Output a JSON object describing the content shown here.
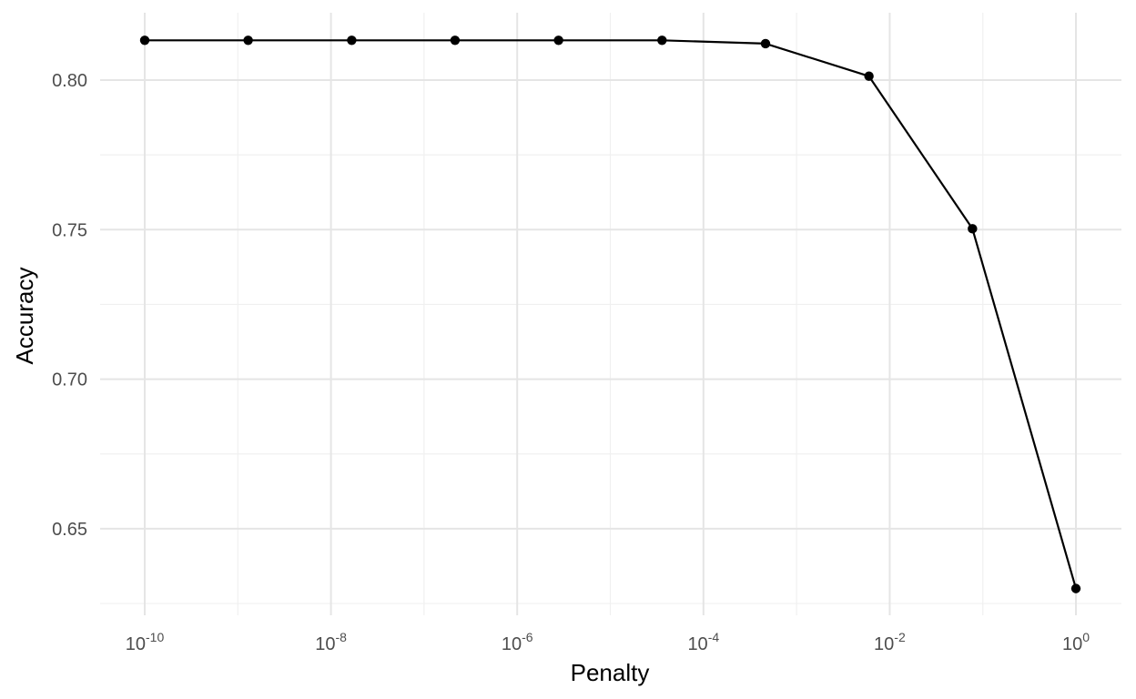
{
  "chart_data": {
    "type": "line",
    "xlabel": "Penalty",
    "ylabel": "Accuracy",
    "x_scale": "log10",
    "xlim": [
      1e-10,
      1
    ],
    "ylim": [
      0.625,
      0.815
    ],
    "grid": true,
    "x_ticks": [
      {
        "base": "10",
        "exp": "-10",
        "value": 1e-10
      },
      {
        "base": "10",
        "exp": "-8",
        "value": 1e-08
      },
      {
        "base": "10",
        "exp": "-6",
        "value": 1e-06
      },
      {
        "base": "10",
        "exp": "-4",
        "value": 0.0001
      },
      {
        "base": "10",
        "exp": "-2",
        "value": 0.01
      },
      {
        "base": "10",
        "exp": "0",
        "value": 1
      }
    ],
    "y_ticks": [
      "0.65",
      "0.70",
      "0.75",
      "0.80"
    ],
    "series": [
      {
        "points": [
          {
            "x": 1e-10,
            "y": 0.8133
          },
          {
            "x": 1.29e-09,
            "y": 0.8133
          },
          {
            "x": 1.67e-08,
            "y": 0.8133
          },
          {
            "x": 2.15e-07,
            "y": 0.8133
          },
          {
            "x": 2.78e-06,
            "y": 0.8133
          },
          {
            "x": 3.59e-05,
            "y": 0.8133
          },
          {
            "x": 0.000464,
            "y": 0.8122
          },
          {
            "x": 0.00599,
            "y": 0.8013
          },
          {
            "x": 0.0774,
            "y": 0.7503
          },
          {
            "x": 1,
            "y": 0.63
          }
        ]
      }
    ]
  }
}
